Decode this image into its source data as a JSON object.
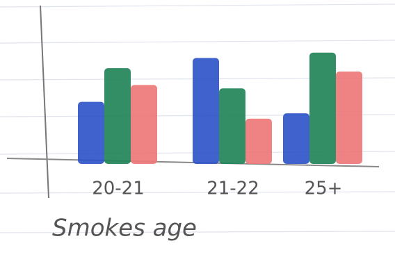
{
  "chart_data": {
    "type": "bar",
    "x_label": "Smokes age",
    "categories": [
      "20-21",
      "21-22",
      "25+"
    ],
    "series": [
      {
        "color": "#2f55c8",
        "values": [
          90,
          155,
          73
        ]
      },
      {
        "color": "#22855a",
        "values": [
          140,
          110,
          163
        ]
      },
      {
        "color": "#ee7878",
        "values": [
          115,
          65,
          135
        ]
      }
    ],
    "ylim": [
      0,
      170
    ]
  }
}
